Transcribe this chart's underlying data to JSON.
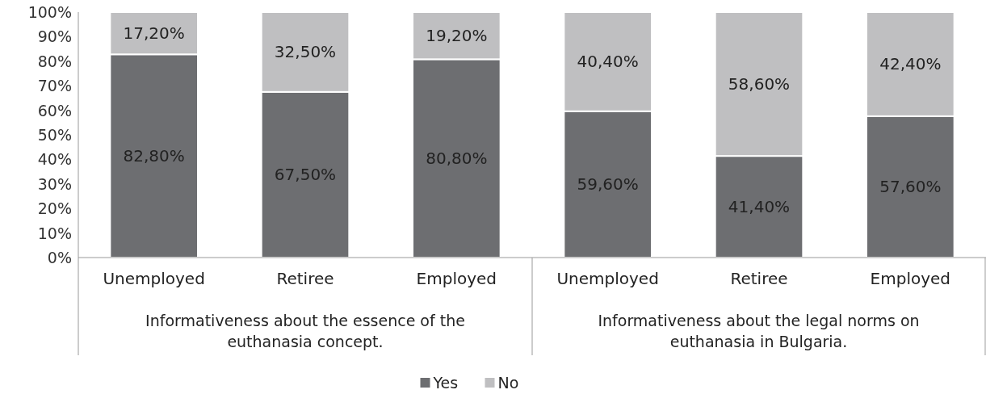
{
  "chart_data": {
    "type": "bar",
    "stacked": true,
    "categories": [
      "Unemployed",
      "Retiree",
      "Employed",
      "Unemployed",
      "Retiree",
      "Employed"
    ],
    "series": [
      {
        "name": "Yes",
        "color": "#6d6e71",
        "values": [
          82.8,
          67.5,
          80.8,
          59.6,
          41.4,
          57.6
        ],
        "value_labels": [
          "82,80%",
          "67,50%",
          "80,80%",
          "59,60%",
          "41,40%",
          "57,60%"
        ]
      },
      {
        "name": "No",
        "color": "#bfbfc1",
        "values": [
          17.2,
          32.5,
          19.2,
          40.4,
          58.6,
          42.4
        ],
        "value_labels": [
          "17,20%",
          "32,50%",
          "19,20%",
          "40,40%",
          "58,60%",
          "42,40%"
        ]
      }
    ],
    "annotations": [
      "Informativeness about the essence of the euthanasia concept.",
      "Informativeness about the legal norms on euthanasia in Bulgaria."
    ],
    "ylim": [
      0,
      100
    ],
    "yticks": [
      {
        "value": 0,
        "label": "0%"
      },
      {
        "value": 10,
        "label": "10%"
      },
      {
        "value": 20,
        "label": "20%"
      },
      {
        "value": 30,
        "label": "30%"
      },
      {
        "value": 40,
        "label": "40%"
      },
      {
        "value": 50,
        "label": "50%"
      },
      {
        "value": 60,
        "label": "60%"
      },
      {
        "value": 70,
        "label": "70%"
      },
      {
        "value": 80,
        "label": "80%"
      },
      {
        "value": 90,
        "label": "90%"
      },
      {
        "value": 100,
        "label": "100%"
      }
    ],
    "legend": "bottom"
  }
}
